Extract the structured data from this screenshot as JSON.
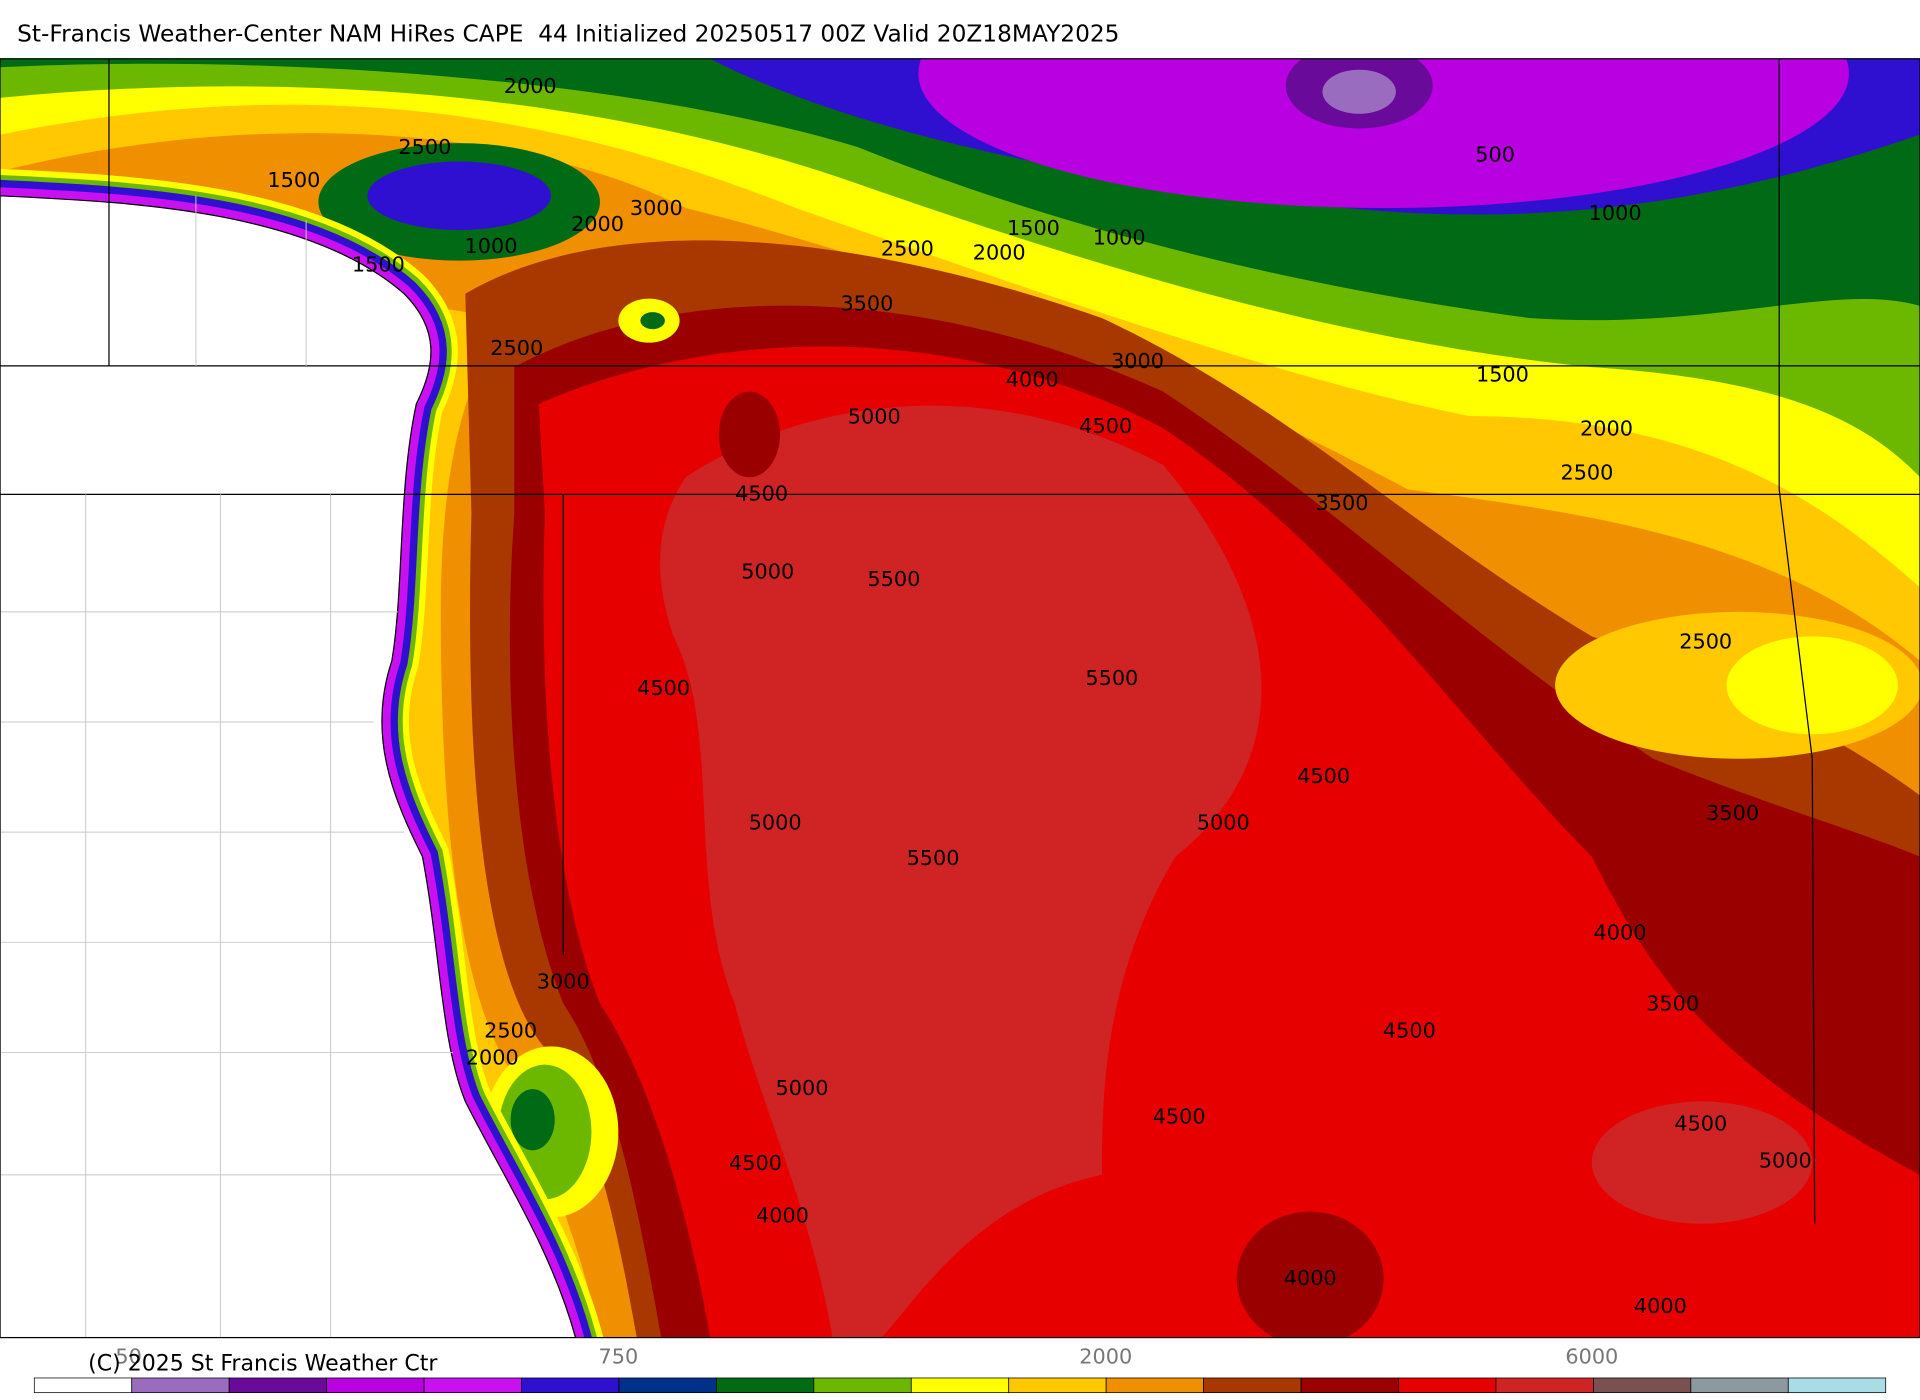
{
  "header": {
    "title": "St-Francis Weather-Center NAM HiRes CAPE  44 Initialized 20250517 00Z Valid 20Z18MAY2025"
  },
  "map": {
    "contour_labels": [
      2000,
      2500,
      1500,
      1000,
      2000,
      3000,
      1500,
      2500,
      1500,
      1000,
      2500,
      2000,
      3500,
      500,
      1000,
      3000,
      4000,
      1500,
      5000,
      4500,
      2000,
      2500,
      4500,
      3500,
      5000,
      5500,
      2500,
      5500,
      4500,
      4500,
      3500,
      5000,
      5000,
      5500,
      4000,
      3000,
      3500,
      2500,
      4500,
      2000,
      5000,
      4500,
      4500,
      5000,
      4500,
      4000,
      4000,
      4000
    ]
  },
  "legend": {
    "colors": [
      "#ffffff",
      "#9a6cc0",
      "#6a0a9a",
      "#b800e0",
      "#c810f0",
      "#3010d0",
      "#00308a",
      "#006a14",
      "#6cb800",
      "#ffff00",
      "#ffc800",
      "#f09000",
      "#a83800",
      "#9a0000",
      "#e60000",
      "#d02424",
      "#7a5050",
      "#8c9aa0",
      "#a8dde6"
    ],
    "labels": [
      "50",
      "750",
      "2000",
      "6000"
    ]
  },
  "footer": {
    "copyright": "(C) 2025 St Francis Weather Ctr"
  }
}
